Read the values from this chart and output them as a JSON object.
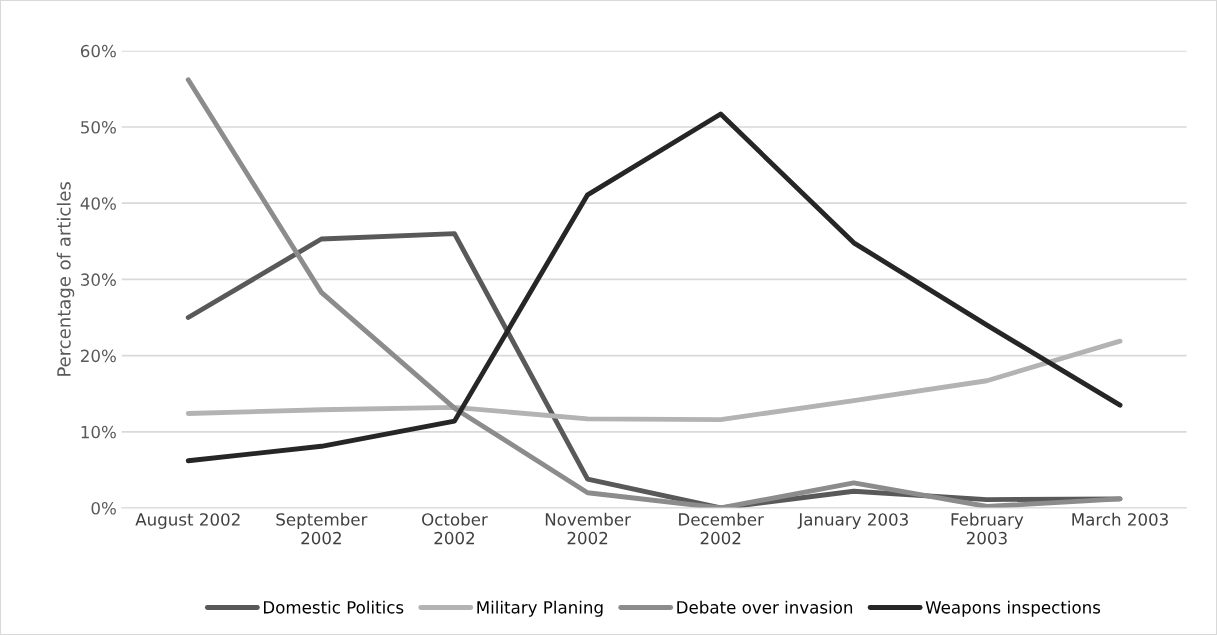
{
  "chart_data": {
    "type": "line",
    "ylabel": "Percentage of articles",
    "categories": [
      "August 2002",
      "September\n2002",
      "October\n2002",
      "November\n2002",
      "December\n2002",
      "January 2003",
      "February\n2003",
      "March 2003"
    ],
    "series": [
      {
        "name": "Domestic Politics",
        "color": "#595959",
        "values": [
          25,
          35.3,
          36,
          3.8,
          0,
          2.2,
          1.1,
          1.2
        ]
      },
      {
        "name": "Military Planing",
        "color": "#b3b3b3",
        "values": [
          12.4,
          12.9,
          13.2,
          11.7,
          11.6,
          14.1,
          16.7,
          21.9
        ]
      },
      {
        "name": "Debate over invasion",
        "color": "#8c8c8c",
        "values": [
          56.2,
          28.3,
          13.1,
          2.0,
          0,
          3.3,
          0.2,
          1.2
        ]
      },
      {
        "name": "Weapons inspections",
        "color": "#262626",
        "values": [
          6.2,
          8.1,
          11.4,
          41.1,
          51.7,
          34.8,
          24.0,
          13.5
        ]
      }
    ],
    "ylim": [
      0,
      60
    ],
    "yticks": [
      {
        "value": 0,
        "label": "0%"
      },
      {
        "value": 10,
        "label": "10%"
      },
      {
        "value": 20,
        "label": "20%"
      },
      {
        "value": 30,
        "label": "30%"
      },
      {
        "value": 40,
        "label": "40%"
      },
      {
        "value": 50,
        "label": "50%"
      },
      {
        "value": 60,
        "label": "60%"
      }
    ],
    "grid": "y",
    "legend": "bottom",
    "marker": "none",
    "line_style": "solid"
  }
}
